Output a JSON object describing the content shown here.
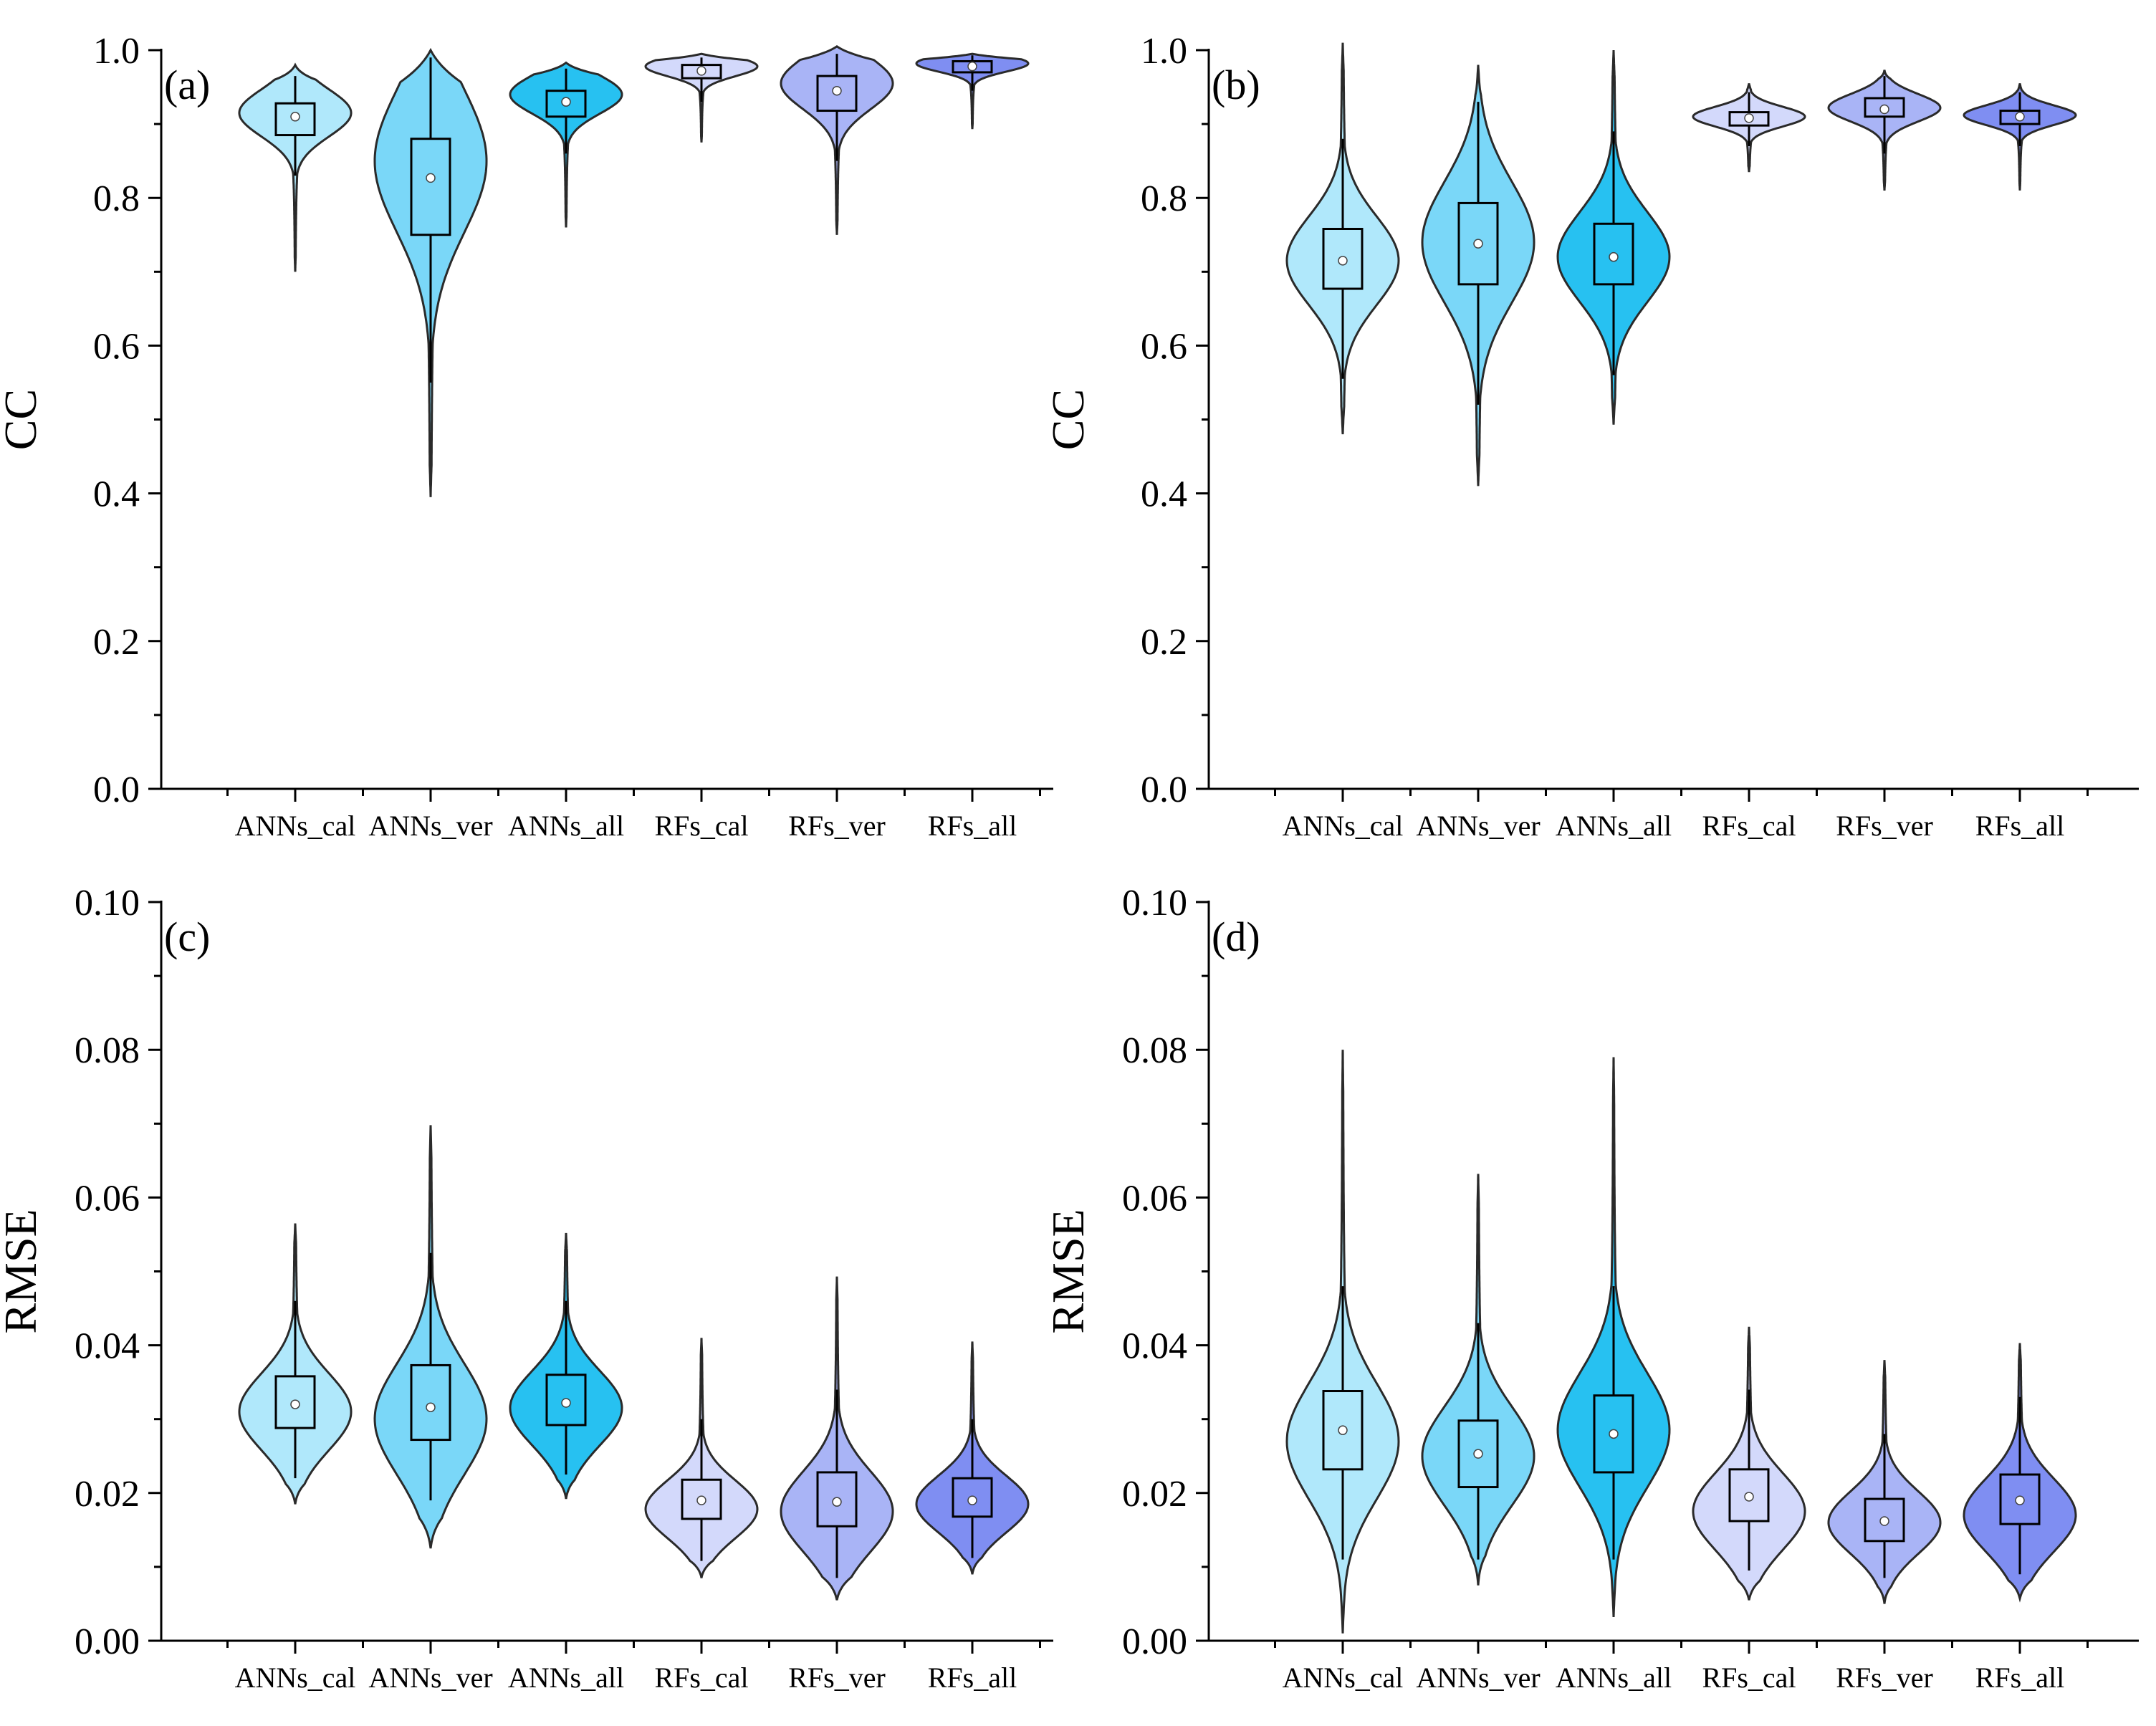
{
  "colors": {
    "ANNs_cal": "#b0e8fb",
    "ANNs_ver": "#7ad7f8",
    "ANNs_all": "#27c1f1",
    "RFs_cal": "#d3d9fb",
    "RFs_ver": "#a9b4f6",
    "RFs_all": "#7f8ef2",
    "outline": "#2a2a2a"
  },
  "chart_data": [
    {
      "id": "a",
      "type": "violin",
      "panel_label": "(a)",
      "ylabel": "CC",
      "ylim": [
        0,
        1.0
      ],
      "yticks": [
        "0.0",
        "0.2",
        "0.4",
        "0.6",
        "0.8",
        "1.0"
      ],
      "categories": [
        "ANNs_cal",
        "ANNs_ver",
        "ANNs_all",
        "RFs_cal",
        "RFs_ver",
        "RFs_all"
      ],
      "series": [
        {
          "name": "ANNs_cal",
          "min": 0.7,
          "q1": 0.885,
          "median": 0.91,
          "q3": 0.928,
          "max": 0.98,
          "mode": 0.915,
          "whisker_low": 0.83,
          "whisker_high": 0.965
        },
        {
          "name": "ANNs_ver",
          "min": 0.395,
          "q1": 0.75,
          "median": 0.827,
          "q3": 0.88,
          "max": 1.0,
          "mode": 0.85,
          "whisker_low": 0.55,
          "whisker_high": 0.99
        },
        {
          "name": "ANNs_all",
          "min": 0.76,
          "q1": 0.91,
          "median": 0.93,
          "q3": 0.945,
          "max": 0.983,
          "mode": 0.94,
          "whisker_low": 0.86,
          "whisker_high": 0.975
        },
        {
          "name": "RFs_cal",
          "min": 0.875,
          "q1": 0.962,
          "median": 0.972,
          "q3": 0.98,
          "max": 0.995,
          "mode": 0.978,
          "whisker_low": 0.93,
          "whisker_high": 0.99
        },
        {
          "name": "RFs_ver",
          "min": 0.75,
          "q1": 0.918,
          "median": 0.945,
          "q3": 0.965,
          "max": 1.005,
          "mode": 0.955,
          "whisker_low": 0.85,
          "whisker_high": 0.995
        },
        {
          "name": "RFs_all",
          "min": 0.893,
          "q1": 0.97,
          "median": 0.978,
          "q3": 0.985,
          "max": 0.995,
          "mode": 0.982,
          "whisker_low": 0.945,
          "whisker_high": 0.993
        }
      ]
    },
    {
      "id": "b",
      "type": "violin",
      "panel_label": "(b)",
      "ylabel": "CC",
      "ylim": [
        0,
        1.0
      ],
      "yticks": [
        "0.0",
        "0.2",
        "0.4",
        "0.6",
        "0.8",
        "1.0"
      ],
      "categories": [
        "ANNs_cal",
        "ANNs_ver",
        "ANNs_all",
        "RFs_cal",
        "RFs_ver",
        "RFs_all"
      ],
      "series": [
        {
          "name": "ANNs_cal",
          "min": 0.48,
          "q1": 0.677,
          "median": 0.715,
          "q3": 0.758,
          "max": 1.01,
          "mode": 0.715,
          "whisker_low": 0.555,
          "whisker_high": 0.88
        },
        {
          "name": "ANNs_ver",
          "min": 0.41,
          "q1": 0.683,
          "median": 0.738,
          "q3": 0.793,
          "max": 0.98,
          "mode": 0.74,
          "whisker_low": 0.52,
          "whisker_high": 0.93
        },
        {
          "name": "ANNs_all",
          "min": 0.493,
          "q1": 0.683,
          "median": 0.72,
          "q3": 0.765,
          "max": 1.0,
          "mode": 0.72,
          "whisker_low": 0.56,
          "whisker_high": 0.89
        },
        {
          "name": "RFs_cal",
          "min": 0.835,
          "q1": 0.898,
          "median": 0.908,
          "q3": 0.916,
          "max": 0.955,
          "mode": 0.91,
          "whisker_low": 0.87,
          "whisker_high": 0.943
        },
        {
          "name": "RFs_ver",
          "min": 0.81,
          "q1": 0.91,
          "median": 0.92,
          "q3": 0.935,
          "max": 0.973,
          "mode": 0.922,
          "whisker_low": 0.86,
          "whisker_high": 0.965
        },
        {
          "name": "RFs_all",
          "min": 0.81,
          "q1": 0.9,
          "median": 0.91,
          "q3": 0.918,
          "max": 0.955,
          "mode": 0.912,
          "whisker_low": 0.87,
          "whisker_high": 0.943
        }
      ]
    },
    {
      "id": "c",
      "type": "violin",
      "panel_label": "(c)",
      "ylabel": "RMSE",
      "ylim": [
        0,
        0.1
      ],
      "yticks": [
        "0.00",
        "0.02",
        "0.04",
        "0.06",
        "0.08",
        "0.10"
      ],
      "categories": [
        "ANNs_cal",
        "ANNs_ver",
        "ANNs_all",
        "RFs_cal",
        "RFs_ver",
        "RFs_all"
      ],
      "series": [
        {
          "name": "ANNs_cal",
          "min": 0.0185,
          "q1": 0.0288,
          "median": 0.032,
          "q3": 0.0358,
          "max": 0.0565,
          "mode": 0.031,
          "whisker_low": 0.022,
          "whisker_high": 0.046
        },
        {
          "name": "ANNs_ver",
          "min": 0.0125,
          "q1": 0.0272,
          "median": 0.0316,
          "q3": 0.0373,
          "max": 0.0698,
          "mode": 0.03,
          "whisker_low": 0.019,
          "whisker_high": 0.0525
        },
        {
          "name": "ANNs_all",
          "min": 0.0192,
          "q1": 0.0292,
          "median": 0.0322,
          "q3": 0.036,
          "max": 0.0552,
          "mode": 0.0315,
          "whisker_low": 0.0225,
          "whisker_high": 0.046
        },
        {
          "name": "RFs_cal",
          "min": 0.0085,
          "q1": 0.0165,
          "median": 0.019,
          "q3": 0.0218,
          "max": 0.041,
          "mode": 0.0178,
          "whisker_low": 0.0108,
          "whisker_high": 0.03
        },
        {
          "name": "RFs_ver",
          "min": 0.0055,
          "q1": 0.0155,
          "median": 0.0188,
          "q3": 0.0228,
          "max": 0.0493,
          "mode": 0.0175,
          "whisker_low": 0.0085,
          "whisker_high": 0.034
        },
        {
          "name": "RFs_all",
          "min": 0.009,
          "q1": 0.0168,
          "median": 0.019,
          "q3": 0.022,
          "max": 0.0405,
          "mode": 0.0185,
          "whisker_low": 0.0112,
          "whisker_high": 0.03
        }
      ]
    },
    {
      "id": "d",
      "type": "violin",
      "panel_label": "(d)",
      "ylabel": "RMSE",
      "ylim": [
        0,
        0.1
      ],
      "yticks": [
        "0.00",
        "0.02",
        "0.04",
        "0.06",
        "0.08",
        "0.10"
      ],
      "categories": [
        "ANNs_cal",
        "ANNs_ver",
        "ANNs_all",
        "RFs_cal",
        "RFs_ver",
        "RFs_all"
      ],
      "series": [
        {
          "name": "ANNs_cal",
          "min": 0.001,
          "q1": 0.0232,
          "median": 0.0285,
          "q3": 0.0338,
          "max": 0.08,
          "mode": 0.027,
          "whisker_low": 0.011,
          "whisker_high": 0.048
        },
        {
          "name": "ANNs_ver",
          "min": 0.0075,
          "q1": 0.0208,
          "median": 0.0253,
          "q3": 0.0298,
          "max": 0.0632,
          "mode": 0.025,
          "whisker_low": 0.011,
          "whisker_high": 0.043
        },
        {
          "name": "ANNs_all",
          "min": 0.0032,
          "q1": 0.0228,
          "median": 0.028,
          "q3": 0.0332,
          "max": 0.079,
          "mode": 0.0285,
          "whisker_low": 0.011,
          "whisker_high": 0.048
        },
        {
          "name": "RFs_cal",
          "min": 0.0055,
          "q1": 0.0162,
          "median": 0.0195,
          "q3": 0.0232,
          "max": 0.0425,
          "mode": 0.0175,
          "whisker_low": 0.0095,
          "whisker_high": 0.034
        },
        {
          "name": "RFs_ver",
          "min": 0.005,
          "q1": 0.0135,
          "median": 0.0162,
          "q3": 0.0192,
          "max": 0.038,
          "mode": 0.016,
          "whisker_low": 0.0085,
          "whisker_high": 0.028
        },
        {
          "name": "RFs_all",
          "min": 0.0057,
          "q1": 0.0158,
          "median": 0.019,
          "q3": 0.0225,
          "max": 0.0403,
          "mode": 0.017,
          "whisker_low": 0.009,
          "whisker_high": 0.033
        }
      ]
    }
  ]
}
